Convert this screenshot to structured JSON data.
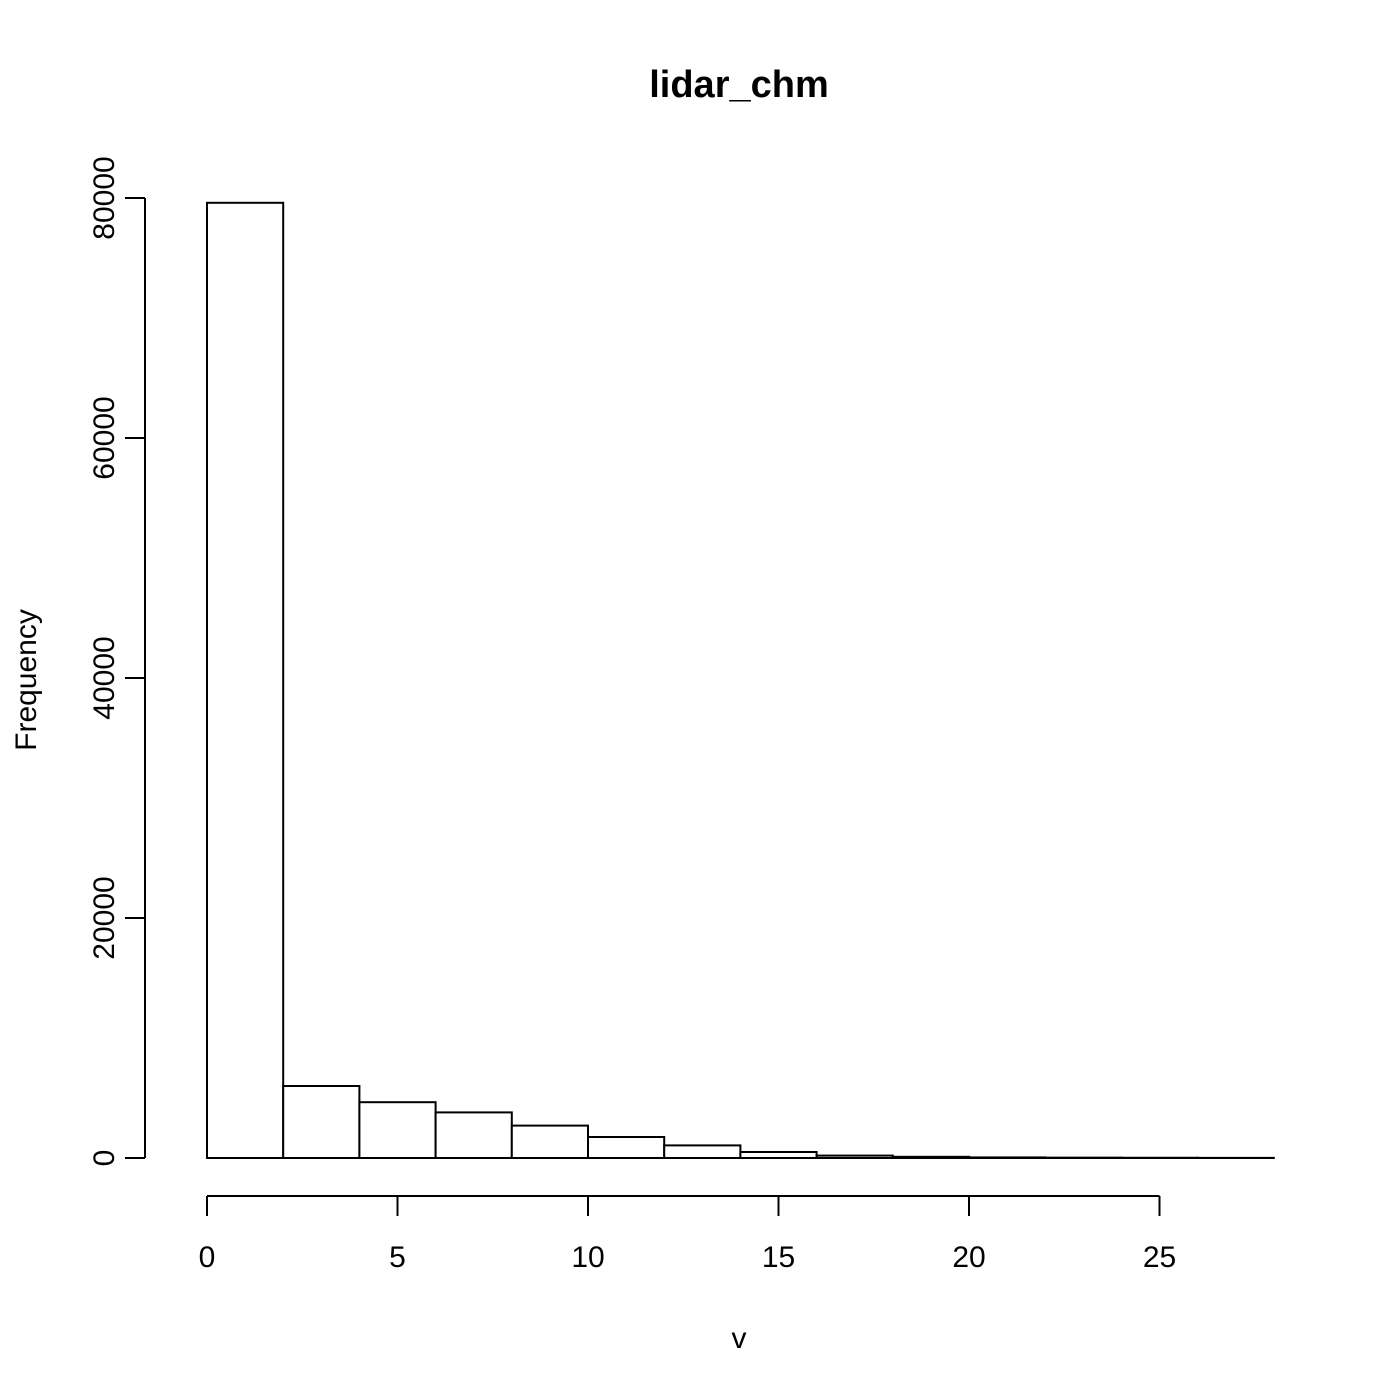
{
  "chart_data": {
    "type": "bar",
    "title": "lidar_chm",
    "xlabel": "v",
    "ylabel": "Frequency",
    "bin_edges": [
      0,
      2,
      4,
      6,
      8,
      10,
      12,
      14,
      16,
      18,
      20,
      22,
      24,
      26,
      28
    ],
    "values": [
      79600,
      6000,
      4650,
      3800,
      2700,
      1750,
      1050,
      500,
      200,
      100,
      50,
      30,
      20,
      10
    ],
    "xlim": [
      0,
      28
    ],
    "ylim": [
      0,
      80000
    ],
    "x_ticks": [
      0,
      5,
      10,
      15,
      20,
      25
    ],
    "x_tick_labels": [
      "0",
      "5",
      "10",
      "15",
      "20",
      "25"
    ],
    "y_ticks": [
      0,
      20000,
      40000,
      60000,
      80000
    ],
    "y_tick_labels": [
      "0",
      "20000",
      "40000",
      "60000",
      "80000"
    ],
    "bar_fill": "#ffffff",
    "bar_stroke": "#000000",
    "grid": false,
    "legend": "none"
  }
}
